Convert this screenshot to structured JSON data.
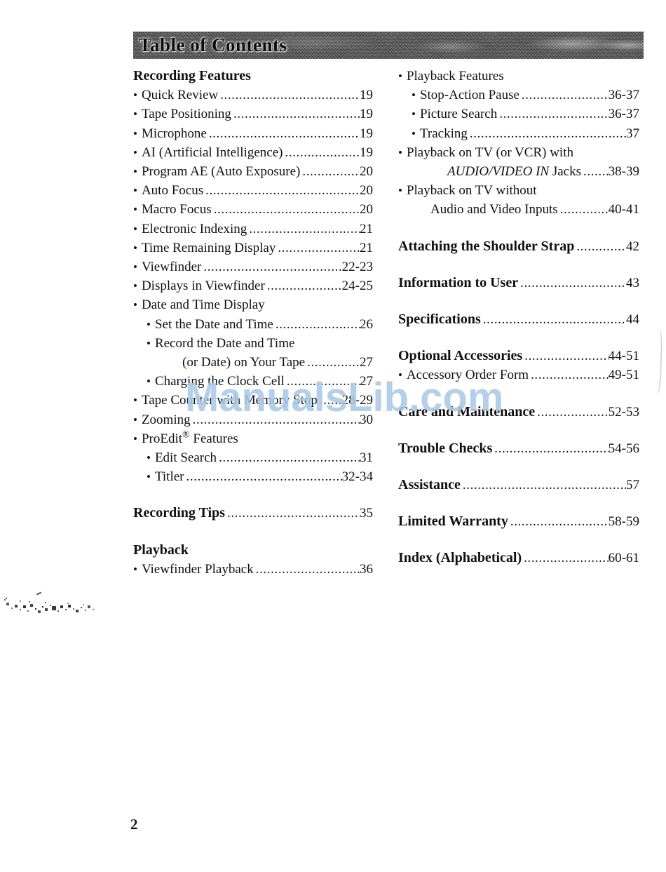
{
  "header": {
    "title": "Table of Contents"
  },
  "watermark": {
    "text": "ManualsLib.com"
  },
  "footer": {
    "page_number": "2"
  },
  "toc": {
    "left_column": [
      {
        "type": "heading",
        "label": "Recording Features"
      },
      {
        "type": "entry",
        "indent": 1,
        "label": "Quick Review",
        "page": "19"
      },
      {
        "type": "entry",
        "indent": 1,
        "label": "Tape Positioning",
        "page": "19"
      },
      {
        "type": "entry",
        "indent": 1,
        "label": "Microphone",
        "page": "19"
      },
      {
        "type": "entry",
        "indent": 1,
        "label": "AI (Artificial Intelligence)",
        "page": "19"
      },
      {
        "type": "entry",
        "indent": 1,
        "label": "Program AE (Auto Exposure)",
        "page": "20"
      },
      {
        "type": "entry",
        "indent": 1,
        "label": "Auto Focus",
        "page": "20"
      },
      {
        "type": "entry",
        "indent": 1,
        "label": "Macro Focus",
        "page": "20"
      },
      {
        "type": "entry",
        "indent": 1,
        "label": "Electronic Indexing",
        "page": "21"
      },
      {
        "type": "entry",
        "indent": 1,
        "label": "Time Remaining Display",
        "page": "21"
      },
      {
        "type": "entry",
        "indent": 1,
        "label": "Viewfinder",
        "page": "22-23"
      },
      {
        "type": "entry",
        "indent": 1,
        "label": "Displays in Viewfinder",
        "page": "24-25"
      },
      {
        "type": "entry",
        "indent": 1,
        "label": "Date and Time Display",
        "page": ""
      },
      {
        "type": "entry",
        "indent": 2,
        "label": "Set the Date and Time",
        "page": "26"
      },
      {
        "type": "entry",
        "indent": 2,
        "label": "Record the Date and Time",
        "page": ""
      },
      {
        "type": "entry",
        "indent": 3,
        "label": "(or Date) on Your Tape",
        "page": "27"
      },
      {
        "type": "entry",
        "indent": 2,
        "label": "Charging the Clock Cell",
        "page": "27"
      },
      {
        "type": "entry",
        "indent": 1,
        "label": "Tape Counter with Memory Stop",
        "page": "28-29"
      },
      {
        "type": "entry",
        "indent": 1,
        "label": "Zooming",
        "page": "30"
      },
      {
        "type": "entry",
        "indent": 1,
        "segments": [
          {
            "text": "ProEdit"
          },
          {
            "text": "®",
            "sup": true
          },
          {
            "text": " Features"
          }
        ],
        "page": ""
      },
      {
        "type": "entry",
        "indent": 2,
        "label": "Edit Search",
        "page": "31"
      },
      {
        "type": "entry",
        "indent": 2,
        "label": "Titler",
        "page": "32-34"
      },
      {
        "type": "spacer"
      },
      {
        "type": "entry",
        "indent": 0,
        "bold": true,
        "label": "Recording Tips",
        "page": "35"
      },
      {
        "type": "spacer"
      },
      {
        "type": "heading",
        "label": "Playback"
      },
      {
        "type": "entry",
        "indent": 1,
        "label": "Viewfinder Playback",
        "page": "36"
      }
    ],
    "right_column": [
      {
        "type": "entry",
        "indent": 1,
        "label": "Playback Features",
        "page": ""
      },
      {
        "type": "entry",
        "indent": 2,
        "label": "Stop-Action Pause",
        "page": "36-37"
      },
      {
        "type": "entry",
        "indent": 2,
        "label": "Picture Search",
        "page": "36-37"
      },
      {
        "type": "entry",
        "indent": 2,
        "label": "Tracking",
        "page": "37"
      },
      {
        "type": "entry",
        "indent": 1,
        "label": "Playback on TV (or VCR) with",
        "page": ""
      },
      {
        "type": "entry",
        "indent": 3,
        "segments": [
          {
            "text": "AUDIO/VIDEO IN",
            "italic": true
          },
          {
            "text": " Jacks"
          }
        ],
        "page": "38-39"
      },
      {
        "type": "entry",
        "indent": 1,
        "label": "Playback on TV without",
        "page": ""
      },
      {
        "type": "entry",
        "indent": 4,
        "label": "Audio and Video Inputs",
        "page": "40-41"
      },
      {
        "type": "spacer"
      },
      {
        "type": "entry",
        "indent": 0,
        "bold": true,
        "label": "Attaching the Shoulder Strap",
        "page": "42"
      },
      {
        "type": "spacer"
      },
      {
        "type": "entry",
        "indent": 0,
        "bold": true,
        "label": "Information to User",
        "page": "43"
      },
      {
        "type": "spacer"
      },
      {
        "type": "entry",
        "indent": 0,
        "bold": true,
        "label": "Specifications",
        "page": "44"
      },
      {
        "type": "spacer"
      },
      {
        "type": "entry",
        "indent": 0,
        "bold": true,
        "label": "Optional Accessories",
        "page": "44-51"
      },
      {
        "type": "entry",
        "indent": 1,
        "label": "Accessory Order Form",
        "page": "49-51"
      },
      {
        "type": "spacer"
      },
      {
        "type": "entry",
        "indent": 0,
        "bold": true,
        "label": "Care and Maintenance",
        "page": "52-53"
      },
      {
        "type": "spacer"
      },
      {
        "type": "entry",
        "indent": 0,
        "bold": true,
        "label": "Trouble Checks",
        "page": "54-56"
      },
      {
        "type": "spacer"
      },
      {
        "type": "entry",
        "indent": 0,
        "bold": true,
        "label": "Assistance",
        "page": "57"
      },
      {
        "type": "spacer"
      },
      {
        "type": "entry",
        "indent": 0,
        "bold": true,
        "label": "Limited Warranty",
        "page": "58-59"
      },
      {
        "type": "spacer"
      },
      {
        "type": "entry",
        "indent": 0,
        "bold": true,
        "label": "Index (Alphabetical)",
        "page": "60-61"
      }
    ]
  }
}
